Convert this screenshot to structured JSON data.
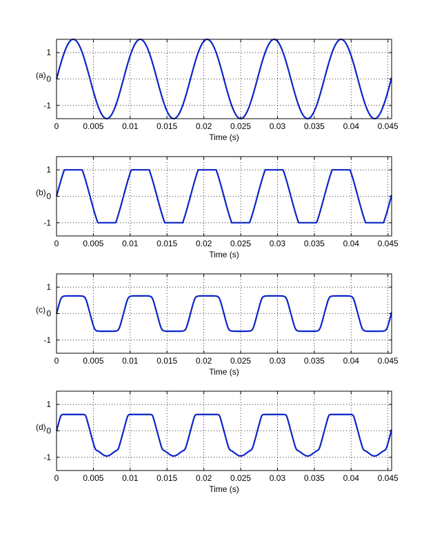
{
  "figure": {
    "background": "#ffffff",
    "axes_color": "#000000",
    "grid_color": "#000000",
    "line_color": "#0a23c8"
  },
  "chart_data": [
    {
      "type": "line",
      "panel_label": "(a)",
      "xlabel": "Time (s)",
      "ylabel": "",
      "xlim": [
        0,
        0.0455
      ],
      "ylim": [
        -1.5,
        1.5
      ],
      "xticks": [
        0,
        0.005,
        0.01,
        0.015,
        0.02,
        0.025,
        0.03,
        0.035,
        0.04,
        0.045
      ],
      "xtick_labels": [
        "0",
        "0.005",
        "0.01",
        "0.015",
        "0.02",
        "0.025",
        "0.03",
        "0.035",
        "0.04",
        "0.045"
      ],
      "yticks": [
        -1,
        0,
        1
      ],
      "ytick_labels": [
        "-1",
        "0",
        "1"
      ],
      "grid": true,
      "legend": "none",
      "series": [
        {
          "waveform": "sine",
          "amplitude": 1.5,
          "frequency_hz": 110,
          "x_range": [
            0,
            0.0455
          ],
          "peaks": [
            [
              0.00227,
              1.5
            ],
            [
              0.01136,
              1.5
            ],
            [
              0.02045,
              1.5
            ],
            [
              0.02955,
              1.5
            ],
            [
              0.03864,
              1.5
            ]
          ],
          "troughs": [
            [
              0.00682,
              -1.5
            ],
            [
              0.01591,
              -1.5
            ],
            [
              0.025,
              -1.5
            ],
            [
              0.03409,
              -1.5
            ],
            [
              0.04318,
              -1.5
            ]
          ]
        }
      ]
    },
    {
      "type": "line",
      "panel_label": "(b)",
      "xlabel": "Time (s)",
      "ylabel": "",
      "xlim": [
        0,
        0.0455
      ],
      "ylim": [
        -1.5,
        1.5
      ],
      "xticks": [
        0,
        0.005,
        0.01,
        0.015,
        0.02,
        0.025,
        0.03,
        0.035,
        0.04,
        0.045
      ],
      "xtick_labels": [
        "0",
        "0.005",
        "0.01",
        "0.015",
        "0.02",
        "0.025",
        "0.03",
        "0.035",
        "0.04",
        "0.045"
      ],
      "yticks": [
        -1,
        0,
        1
      ],
      "ytick_labels": [
        "-1",
        "0",
        "1"
      ],
      "grid": true,
      "legend": "none",
      "series": [
        {
          "waveform": "hard-clipped sine",
          "amplitude": 1.5,
          "clip_level": 1.0,
          "frequency_hz": 110,
          "x_range": [
            0,
            0.0455
          ]
        }
      ]
    },
    {
      "type": "line",
      "panel_label": "(c)",
      "xlabel": "Time (s)",
      "ylabel": "",
      "xlim": [
        0,
        0.0455
      ],
      "ylim": [
        -1.5,
        1.5
      ],
      "xticks": [
        0,
        0.005,
        0.01,
        0.015,
        0.02,
        0.025,
        0.03,
        0.035,
        0.04,
        0.045
      ],
      "xtick_labels": [
        "0",
        "0.005",
        "0.01",
        "0.015",
        "0.02",
        "0.025",
        "0.03",
        "0.035",
        "0.04",
        "0.045"
      ],
      "yticks": [
        -1,
        0,
        1
      ],
      "ytick_labels": [
        "-1",
        "0",
        "1"
      ],
      "grid": true,
      "legend": "none",
      "series": [
        {
          "waveform": "soft-clipped sine",
          "amplitude": 1.5,
          "saturation_level": 0.67,
          "frequency_hz": 110,
          "x_range": [
            0,
            0.0455
          ]
        }
      ]
    },
    {
      "type": "line",
      "panel_label": "(d)",
      "xlabel": "Time (s)",
      "ylabel": "",
      "xlim": [
        0,
        0.0455
      ],
      "ylim": [
        -1.5,
        1.5
      ],
      "xticks": [
        0,
        0.005,
        0.01,
        0.015,
        0.02,
        0.025,
        0.03,
        0.035,
        0.04,
        0.045
      ],
      "xtick_labels": [
        "0",
        "0.005",
        "0.01",
        "0.015",
        "0.02",
        "0.025",
        "0.03",
        "0.035",
        "0.04",
        "0.045"
      ],
      "yticks": [
        -1,
        0,
        1
      ],
      "ytick_labels": [
        "-1",
        "0",
        "1"
      ],
      "grid": true,
      "legend": "none",
      "series": [
        {
          "waveform": "asymmetric clipped sine",
          "amplitude": 1.5,
          "positive_level": 0.62,
          "negative_knee": -0.75,
          "negative_peak": -0.95,
          "frequency_hz": 110,
          "x_range": [
            0,
            0.0455
          ]
        }
      ]
    }
  ]
}
